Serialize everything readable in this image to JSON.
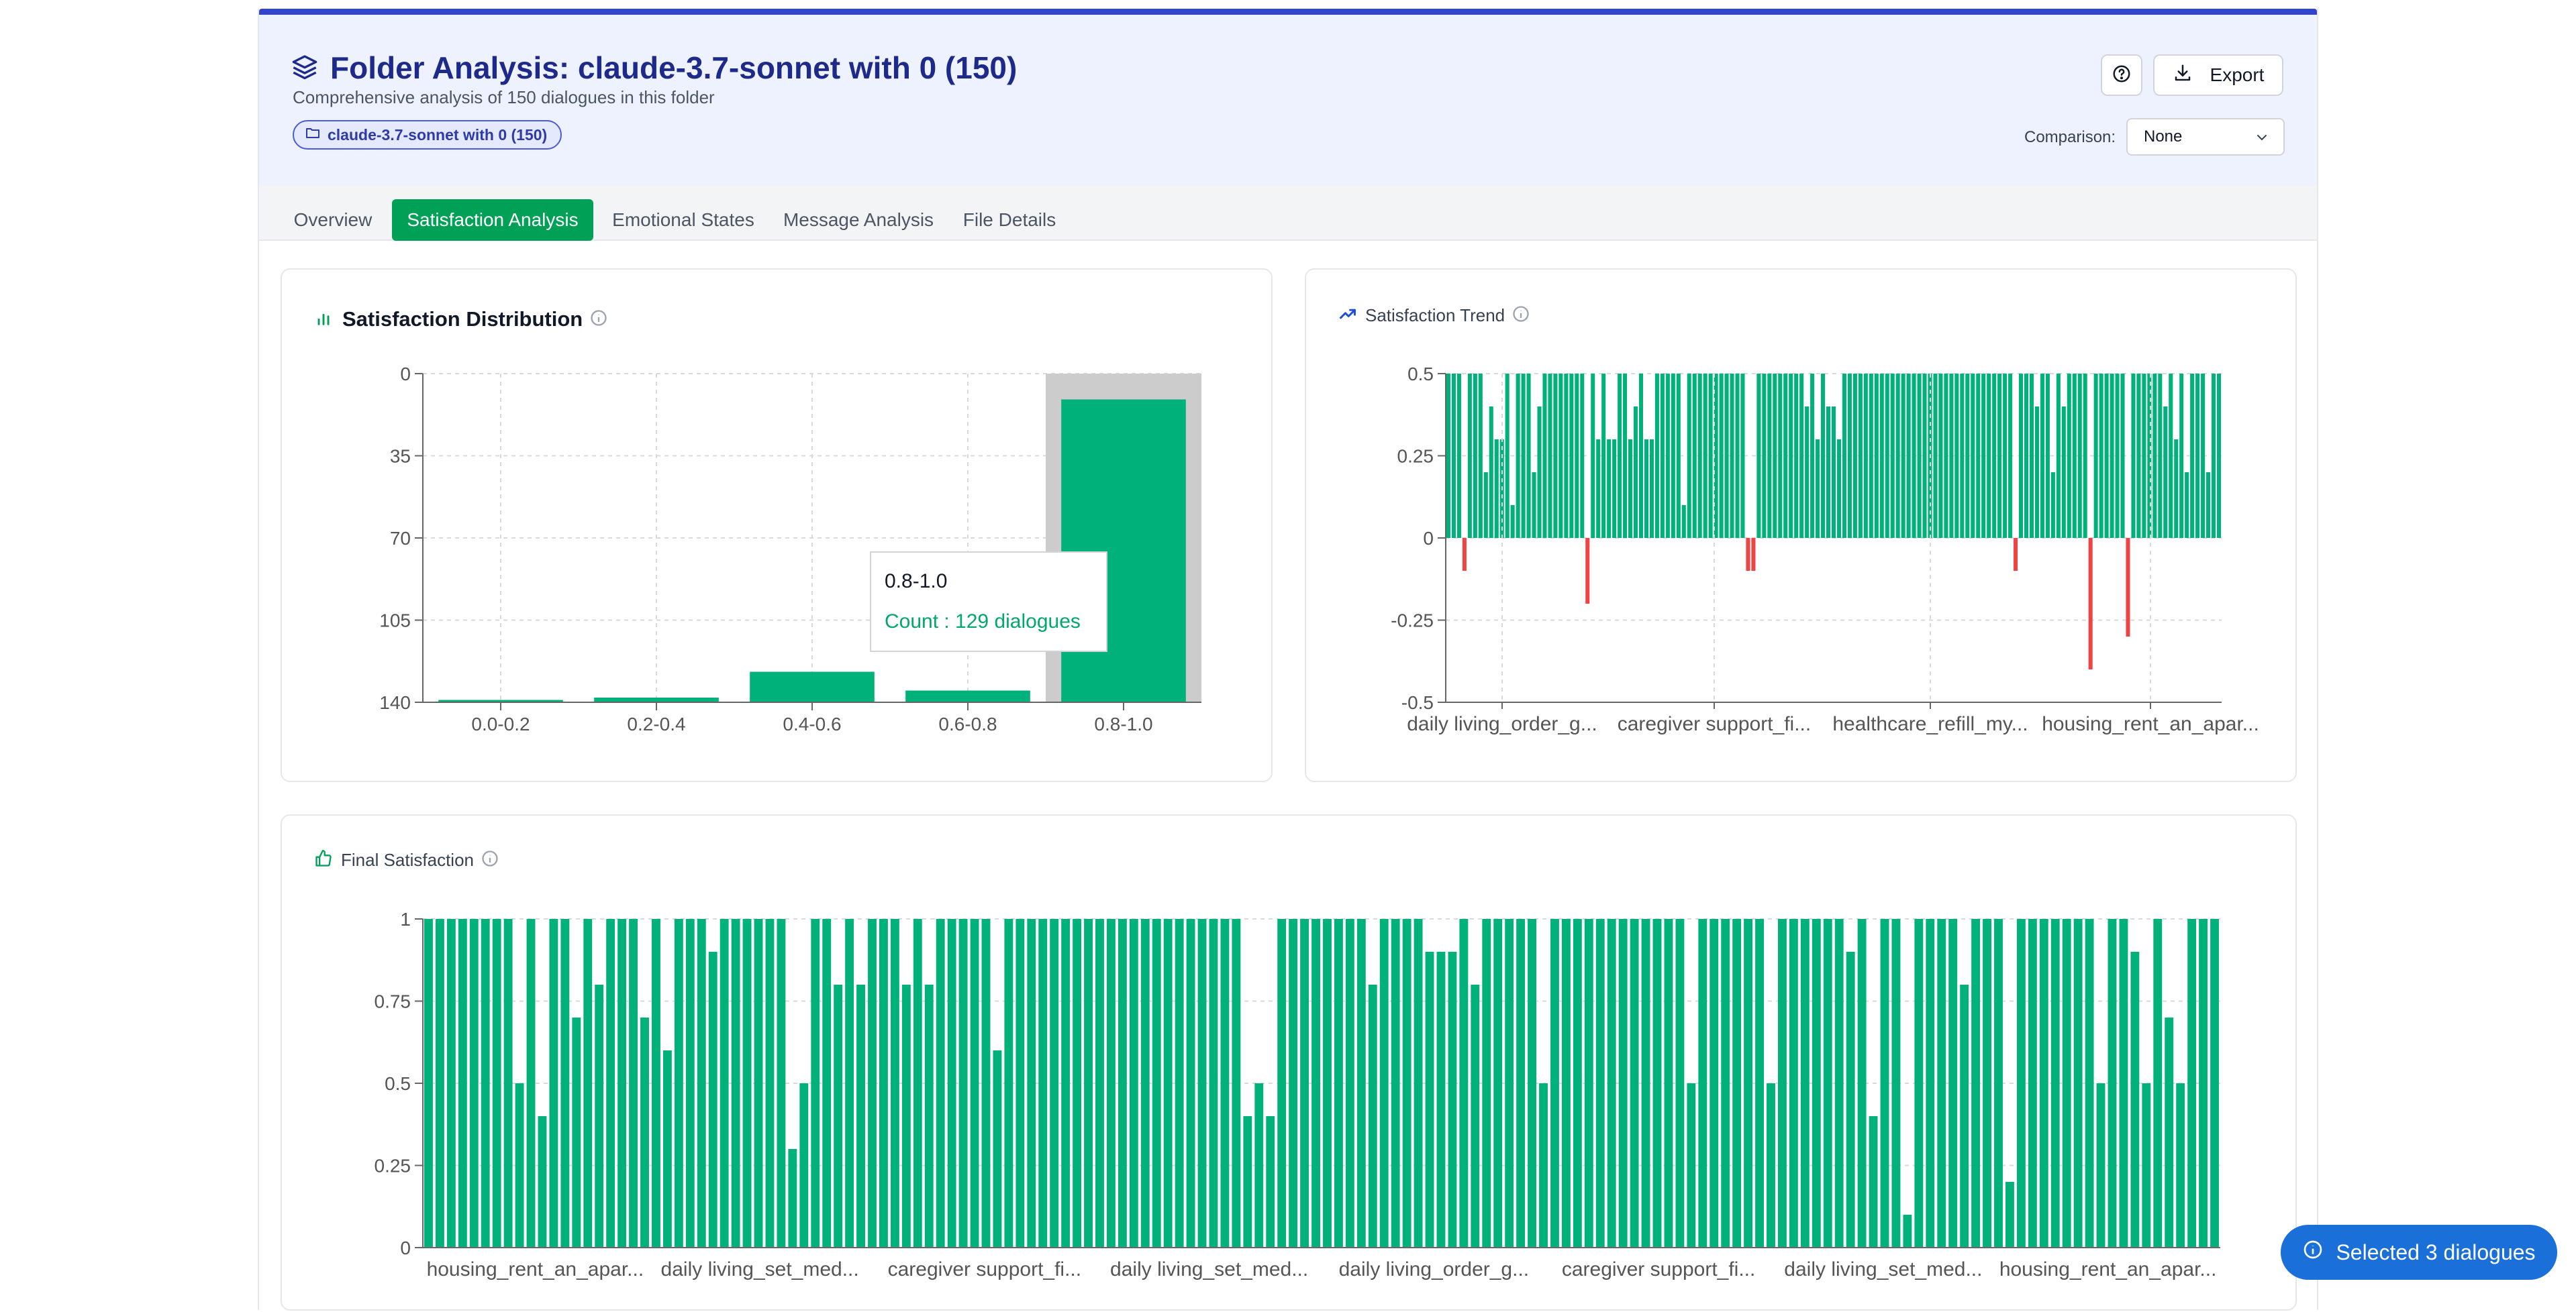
{
  "header": {
    "title": "Folder Analysis: claude-3.7-sonnet with 0 (150)",
    "subtitle": "Comprehensive analysis of 150 dialogues in this folder",
    "folder_badge": "claude-3.7-sonnet with 0 (150)",
    "export_label": "Export",
    "comparison_label": "Comparison:",
    "comparison_value": "None"
  },
  "tabs": [
    {
      "label": "Overview",
      "active": false
    },
    {
      "label": "Satisfaction Analysis",
      "active": true
    },
    {
      "label": "Emotional States",
      "active": false
    },
    {
      "label": "Message Analysis",
      "active": false
    },
    {
      "label": "File Details",
      "active": false
    }
  ],
  "colors": {
    "accent": "#00a057",
    "bar": "#00b17a",
    "negative": "#ef4444",
    "title": "#1e2a8a",
    "pill": "#1b6fd8"
  },
  "tooltip": {
    "label": "0.8-1.0",
    "value": "Count : 129 dialogues"
  },
  "selected_pill": "Selected 3 dialogues",
  "chart_data": [
    {
      "type": "bar",
      "title": "Satisfaction Distribution",
      "categories": [
        "0.0-0.2",
        "0.2-0.4",
        "0.4-0.6",
        "0.6-0.8",
        "0.8-1.0"
      ],
      "values": [
        1,
        2,
        13,
        5,
        129
      ],
      "yticks": [
        "0",
        "35",
        "70",
        "105",
        "140"
      ],
      "ylim": [
        0,
        140
      ],
      "highlighted_category": "0.8-1.0",
      "grid": true
    },
    {
      "type": "bar",
      "title": "Satisfaction Trend",
      "xtick_labels": [
        "daily living_order_g...",
        "caregiver support_fi...",
        "healthcare_refill_my...",
        "housing_rent_an_apar..."
      ],
      "yticks": [
        "0.5",
        "0.25",
        "0",
        "-0.25",
        "-0.5"
      ],
      "ylim": [
        -0.5,
        0.5
      ],
      "grid": true,
      "values": [
        0.5,
        0.5,
        0.5,
        -0.1,
        0.5,
        0.5,
        0.5,
        0.2,
        0.4,
        0.3,
        0.3,
        0.5,
        0.1,
        0.5,
        0.5,
        0.5,
        0.2,
        0.4,
        0.5,
        0.5,
        0.5,
        0.5,
        0.5,
        0.5,
        0.5,
        0.5,
        -0.2,
        0.5,
        0.3,
        0.5,
        0.3,
        0.3,
        0.5,
        0.5,
        0.3,
        0.4,
        0.5,
        0.3,
        0.3,
        0.5,
        0.5,
        0.5,
        0.5,
        0.5,
        0.1,
        0.5,
        0.5,
        0.5,
        0.5,
        0.5,
        0.5,
        0.5,
        0.5,
        0.5,
        0.5,
        0.5,
        -0.1,
        -0.1,
        0.5,
        0.5,
        0.5,
        0.5,
        0.5,
        0.5,
        0.5,
        0.5,
        0.5,
        0.4,
        0.5,
        0.3,
        0.5,
        0.4,
        0.4,
        0.3,
        0.5,
        0.5,
        0.5,
        0.5,
        0.5,
        0.5,
        0.5,
        0.5,
        0.5,
        0.5,
        0.5,
        0.5,
        0.5,
        0.5,
        0.5,
        0.5,
        0.5,
        0.5,
        0.5,
        0.5,
        0.5,
        0.5,
        0.5,
        0.5,
        0.5,
        0.5,
        0.5,
        0.5,
        0.5,
        0.5,
        0.5,
        0.5,
        -0.1,
        0.5,
        0.5,
        0.5,
        0.4,
        0.5,
        0.5,
        0.2,
        0.5,
        0.4,
        0.5,
        0.5,
        0.5,
        0.5,
        -0.4,
        0.5,
        0.5,
        0.5,
        0.5,
        0.5,
        0.5,
        -0.3,
        0.5,
        0.5,
        0.5,
        0.5,
        0.5,
        0.5,
        0.4,
        0.5,
        0.3,
        0.5,
        0.2,
        0.5,
        0.5,
        0.5,
        0.2,
        0.5,
        0.5
      ]
    },
    {
      "type": "bar",
      "title": "Final Satisfaction",
      "xtick_labels": [
        "housing_rent_an_apar...",
        "daily living_set_med...",
        "caregiver support_fi...",
        "daily living_set_med...",
        "daily living_order_g...",
        "caregiver support_fi...",
        "daily living_set_med...",
        "housing_rent_an_apar..."
      ],
      "yticks": [
        "1",
        "0.75",
        "0.5",
        "0.25",
        "0"
      ],
      "ylim": [
        0,
        1
      ],
      "grid": true,
      "values": [
        1,
        1,
        1,
        1,
        1,
        1,
        1,
        1,
        0.5,
        1,
        0.4,
        1,
        1,
        0.7,
        1,
        0.8,
        1,
        1,
        1,
        0.7,
        1,
        0.6,
        1,
        1,
        1,
        0.9,
        1,
        1,
        1,
        1,
        1,
        1,
        0.3,
        0.5,
        1,
        1,
        0.8,
        1,
        0.8,
        1,
        1,
        1,
        0.8,
        1,
        0.8,
        1,
        1,
        1,
        1,
        1,
        0.6,
        1,
        1,
        1,
        1,
        1,
        1,
        1,
        1,
        1,
        1,
        1,
        1,
        1,
        1,
        1,
        1,
        1,
        1,
        1,
        1,
        1,
        0.4,
        0.5,
        0.4,
        1,
        1,
        1,
        1,
        1,
        1,
        1,
        1,
        0.8,
        1,
        1,
        1,
        1,
        0.9,
        0.9,
        0.9,
        1,
        0.8,
        1,
        1,
        1,
        1,
        1,
        0.5,
        1,
        1,
        1,
        1,
        1,
        1,
        1,
        1,
        1,
        1,
        1,
        1,
        0.5,
        1,
        1,
        1,
        1,
        1,
        1,
        0.5,
        1,
        1,
        1,
        1,
        1,
        1,
        0.9,
        1,
        0.4,
        1,
        1,
        0.1,
        1,
        1,
        1,
        1,
        0.8,
        1,
        1,
        1,
        0.2,
        1,
        1,
        1,
        1,
        1,
        1,
        1,
        0.5,
        1,
        1,
        0.9,
        0.5,
        1,
        0.7,
        0.5,
        1,
        1,
        1
      ]
    }
  ],
  "card_titles": {
    "distribution": "Satisfaction Distribution",
    "trend": "Satisfaction Trend",
    "final": "Final Satisfaction"
  }
}
